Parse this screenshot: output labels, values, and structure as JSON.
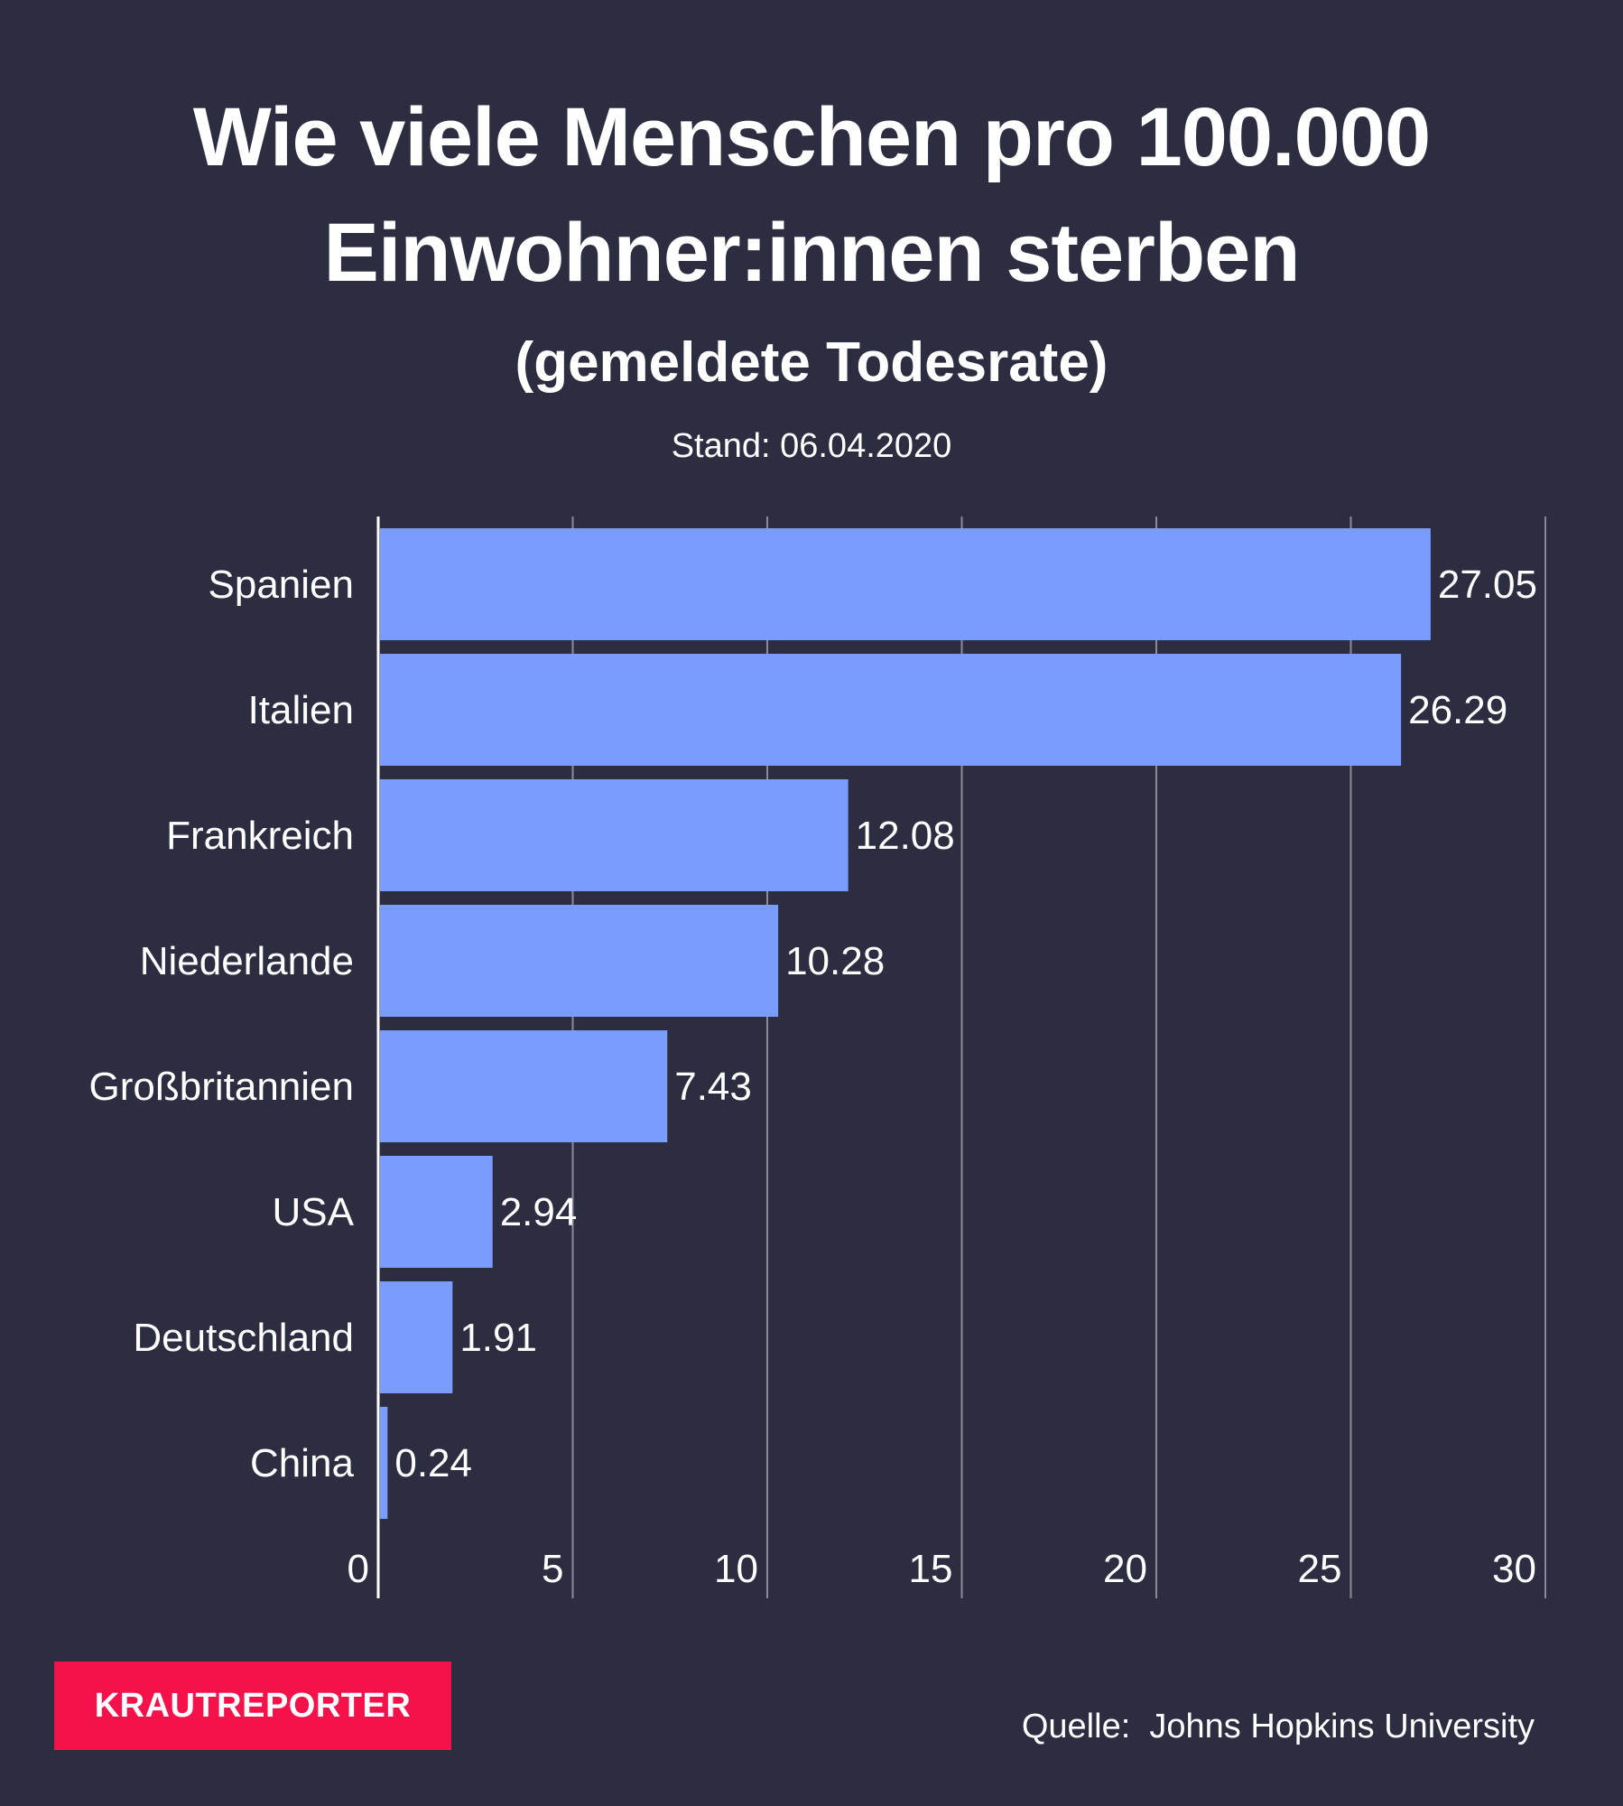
{
  "header": {
    "title_line1": "Wie viele Menschen pro 100.000",
    "title_line2": "Einwohner:innen sterben",
    "subtitle": "(gemeldete Todesrate)",
    "date": "Stand: 06.04.2020"
  },
  "footer": {
    "logo": "KRAUTREPORTER",
    "source_label": "Quelle:",
    "source_value": "Johns Hopkins University"
  },
  "colors": {
    "background": "#2d2d41",
    "bar": "#7b9cff",
    "grid": "#8a8a98",
    "logo": "#f5124a"
  },
  "chart_data": {
    "type": "bar",
    "orientation": "horizontal",
    "categories": [
      "Spanien",
      "Italien",
      "Frankreich",
      "Niederlande",
      "Großbritannien",
      "USA",
      "Deutschland",
      "China"
    ],
    "values": [
      27.05,
      26.29,
      12.08,
      10.28,
      7.43,
      2.94,
      1.91,
      0.24
    ],
    "value_labels": [
      "27.05",
      "26.29",
      "12.08",
      "10.28",
      "7.43",
      "2.94",
      "1.91",
      "0.24"
    ],
    "xticks": [
      0,
      5,
      10,
      15,
      20,
      25,
      30
    ],
    "xtick_labels": [
      "0",
      "5",
      "10",
      "15",
      "20",
      "25",
      "30"
    ],
    "xlim": [
      0,
      30
    ],
    "grid": true
  }
}
